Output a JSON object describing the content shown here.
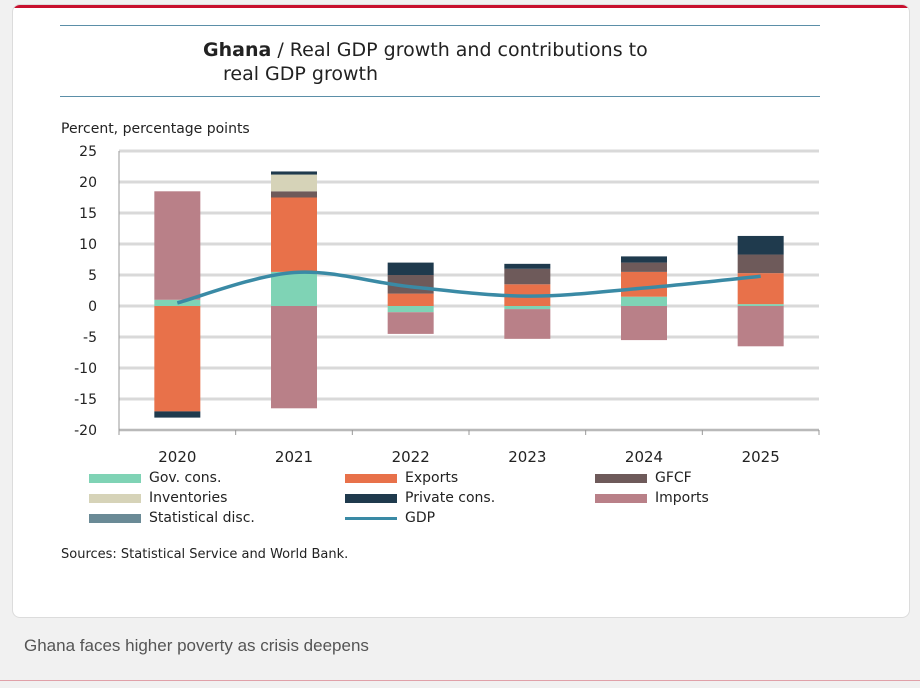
{
  "caption": "Ghana faces higher poverty as crisis deepens",
  "chart_data": {
    "type": "bar",
    "stacked": true,
    "title_bold": "Ghana",
    "title_rest": " / Real GDP growth and contributions to",
    "title_line2": "real GDP growth",
    "ylabel": "Percent, percentage points",
    "ylim": [
      -20,
      25
    ],
    "yticks": [
      25,
      20,
      15,
      10,
      5,
      0,
      -5,
      -10,
      -15,
      -20
    ],
    "ytick_labels": [
      "25",
      "20",
      "15",
      "10",
      "5",
      "0",
      "-5",
      "-10",
      "-15",
      "-20"
    ],
    "grid": true,
    "categories": [
      "2020",
      "2021",
      "2022",
      "2023",
      "2024",
      "2025"
    ],
    "series": [
      {
        "name": "Gov. cons.",
        "color": "#7fd3b5",
        "values": [
          1.0,
          5.5,
          -1.0,
          -0.5,
          1.5,
          0.3
        ]
      },
      {
        "name": "Exports",
        "color": "#e8714a",
        "values": [
          -17.0,
          12.0,
          2.0,
          3.5,
          4.0,
          5.0
        ]
      },
      {
        "name": "GFCF",
        "color": "#6e5a5a",
        "values": [
          0,
          1.0,
          3.0,
          2.5,
          1.5,
          3.0
        ]
      },
      {
        "name": "Inventories",
        "color": "#d6d3b8",
        "values": [
          0,
          2.7,
          0,
          0,
          0,
          0
        ]
      },
      {
        "name": "Private cons.",
        "color": "#1f3a4d",
        "values": [
          -1.0,
          0.5,
          2.0,
          0.8,
          1.0,
          3.0
        ]
      },
      {
        "name": "Imports",
        "color": "#b98088",
        "values": [
          17.5,
          -16.5,
          -3.5,
          -4.8,
          -5.5,
          -6.5
        ]
      },
      {
        "name": "Statistical disc.",
        "color": "#6a8a96",
        "values": [
          0,
          0,
          0,
          0,
          0,
          0
        ]
      }
    ],
    "line": {
      "name": "GDP",
      "color": "#3a8aa5",
      "values": [
        0.5,
        5.4,
        3.1,
        1.6,
        2.9,
        4.8
      ]
    },
    "source": "Sources: Statistical Service and World Bank."
  }
}
